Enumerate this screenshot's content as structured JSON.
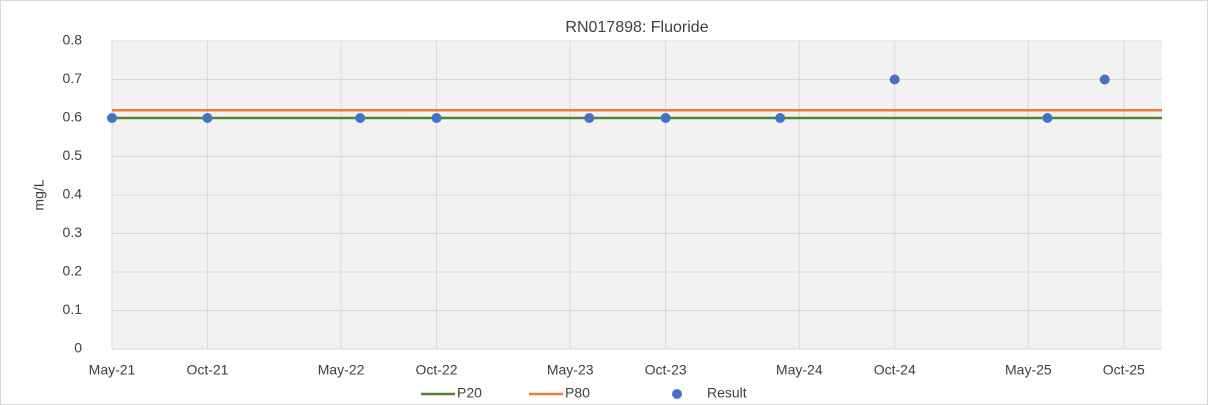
{
  "chart_data": {
    "type": "scatter",
    "title": "RN017898: Fluoride",
    "y_label": "mg/L",
    "xlim": [
      "2021-05",
      "2025-12"
    ],
    "xticks": [
      {
        "value": "2021-05",
        "label": "May-21"
      },
      {
        "value": "2021-10",
        "label": "Oct-21"
      },
      {
        "value": "2022-05",
        "label": "May-22"
      },
      {
        "value": "2022-10",
        "label": "Oct-22"
      },
      {
        "value": "2023-05",
        "label": "May-23"
      },
      {
        "value": "2023-10",
        "label": "Oct-23"
      },
      {
        "value": "2024-05",
        "label": "May-24"
      },
      {
        "value": "2024-10",
        "label": "Oct-24"
      },
      {
        "value": "2025-05",
        "label": "May-25"
      },
      {
        "value": "2025-10",
        "label": "Oct-25"
      }
    ],
    "ylim": [
      0,
      0.8
    ],
    "yticks": [
      0,
      0.1,
      0.2,
      0.3,
      0.4,
      0.5,
      0.6,
      0.7,
      0.8
    ],
    "grid": true,
    "legend": "bottom",
    "series": [
      {
        "name": "P20",
        "style": "line",
        "color": "#548235",
        "x": [
          "2021-05",
          "2025-12"
        ],
        "values": [
          0.6,
          0.6
        ]
      },
      {
        "name": "P80",
        "style": "line",
        "color": "#ed7d31",
        "x": [
          "2021-05",
          "2025-12"
        ],
        "values": [
          0.62,
          0.62
        ]
      },
      {
        "name": "Result",
        "style": "marker",
        "color": "#4472c4",
        "x": [
          "2021-05",
          "2021-10",
          "2022-06",
          "2022-10",
          "2023-06",
          "2023-10",
          "2024-04",
          "2024-10",
          "2025-06",
          "2025-09"
        ],
        "values": [
          0.6,
          0.6,
          0.6,
          0.6,
          0.6,
          0.6,
          0.6,
          0.7,
          0.6,
          0.7
        ]
      }
    ]
  }
}
